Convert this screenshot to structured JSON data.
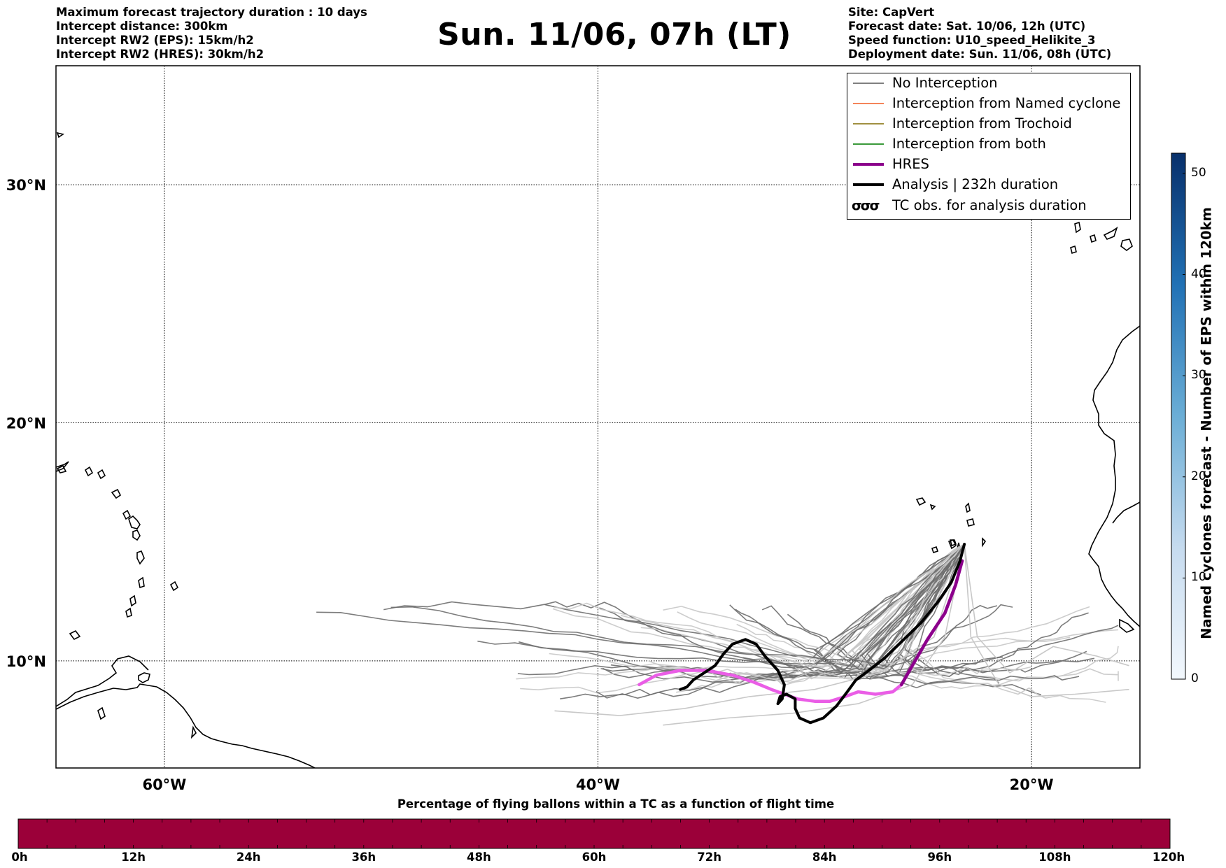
{
  "title": "Sun. 11/06, 07h (LT)",
  "info_left": [
    "Maximum forecast trajectory duration : 10 days",
    "Intercept distance: 300km",
    "Intercept RW2 (EPS):  15km/h2",
    "Intercept RW2 (HRES): 30km/h2"
  ],
  "info_right": [
    "Site: CapVert",
    "Forecast date: Sat. 10/06, 12h (UTC)",
    "Speed function: U10_speed_Helikite_3",
    "Deployment date: Sun. 11/06, 08h (UTC)"
  ],
  "map": {
    "lon_range": [
      -65,
      -15
    ],
    "lat_range": [
      5.5,
      35
    ],
    "lat_ticks": [
      {
        "value": 30,
        "label": "30°N"
      },
      {
        "value": 20,
        "label": "20°N"
      },
      {
        "value": 10,
        "label": "10°N"
      }
    ],
    "lon_ticks": [
      {
        "value": -60,
        "label": "60°W"
      },
      {
        "value": -40,
        "label": "40°W"
      },
      {
        "value": -20,
        "label": "20°W"
      }
    ],
    "grid": "dotted"
  },
  "legend": {
    "placement": "top-right",
    "items": [
      {
        "label": "No Interception",
        "color": "#808080",
        "style": "thin"
      },
      {
        "label": "Interception from Named cyclone",
        "color": "#f4845a",
        "style": "thin"
      },
      {
        "label": "Interception from Trochoid",
        "color": "#a09040",
        "style": "thin"
      },
      {
        "label": "Interception from both",
        "color": "#3a9a3a",
        "style": "thin"
      },
      {
        "label": "HRES",
        "color": "#8b008b",
        "style": "thick"
      },
      {
        "label": "Analysis | 232h duration",
        "color": "#000000",
        "style": "thick"
      },
      {
        "label": "TC obs. for analysis duration",
        "color": "#000000",
        "style": "cyclone-symbols"
      }
    ]
  },
  "trajectories": {
    "analysis": [
      [
        -23.1,
        14.9
      ],
      [
        -23.3,
        14.2
      ],
      [
        -23.7,
        13.3
      ],
      [
        -24.3,
        12.5
      ],
      [
        -25.1,
        11.6
      ],
      [
        -26.0,
        10.8
      ],
      [
        -26.8,
        10.1
      ],
      [
        -27.5,
        9.6
      ],
      [
        -28.1,
        9.2
      ],
      [
        -28.5,
        8.7
      ],
      [
        -29.0,
        8.1
      ],
      [
        -29.6,
        7.6
      ],
      [
        -30.2,
        7.4
      ],
      [
        -30.7,
        7.6
      ],
      [
        -30.9,
        8.0
      ],
      [
        -30.9,
        8.4
      ],
      [
        -31.3,
        8.6
      ],
      [
        -31.6,
        8.5
      ],
      [
        -31.7,
        8.2
      ],
      [
        -31.5,
        8.4
      ],
      [
        -31.4,
        9.0
      ],
      [
        -31.7,
        9.6
      ],
      [
        -32.3,
        10.2
      ],
      [
        -32.7,
        10.7
      ],
      [
        -33.2,
        10.9
      ],
      [
        -33.8,
        10.7
      ],
      [
        -34.2,
        10.3
      ],
      [
        -34.6,
        9.8
      ],
      [
        -35.1,
        9.5
      ],
      [
        -35.6,
        9.2
      ],
      [
        -35.9,
        8.9
      ],
      [
        -36.2,
        8.8
      ]
    ],
    "hres": [
      [
        -23.2,
        14.2
      ],
      [
        -23.5,
        13.2
      ],
      [
        -24.0,
        12.0
      ],
      [
        -24.8,
        10.9
      ],
      [
        -25.5,
        9.8
      ],
      [
        -26.0,
        9.0
      ],
      [
        -26.4,
        8.7
      ],
      [
        -27.2,
        8.6
      ],
      [
        -28.0,
        8.7
      ],
      [
        -28.6,
        8.5
      ],
      [
        -29.3,
        8.3
      ],
      [
        -30.0,
        8.3
      ],
      [
        -30.8,
        8.4
      ],
      [
        -31.4,
        8.6
      ],
      [
        -32.0,
        8.8
      ],
      [
        -32.8,
        9.1
      ],
      [
        -33.8,
        9.4
      ],
      [
        -35.0,
        9.6
      ],
      [
        -36.2,
        9.6
      ],
      [
        -37.3,
        9.4
      ],
      [
        -38.1,
        9.0
      ]
    ],
    "eps_member_count": 50
  },
  "colorbar_right": {
    "label": "Named cyclones forecast - Number of EPS within 120km",
    "min": 0,
    "max": 52,
    "ticks": [
      0,
      10,
      20,
      30,
      40,
      50
    ],
    "colors": [
      "#f3f8fd",
      "#c6dbef",
      "#6baed6",
      "#2171b5",
      "#08306b"
    ]
  },
  "colorbar_bottom": {
    "title": "Percentage of flying ballons within a TC as a function of flight time",
    "fill_color": "#9b0039",
    "percent_values": [
      0,
      0,
      0,
      0,
      0,
      0,
      0,
      0,
      0,
      0
    ],
    "tick_labels": [
      "0h",
      "12h",
      "24h",
      "36h",
      "48h",
      "60h",
      "72h",
      "84h",
      "96h",
      "108h",
      "120h"
    ]
  }
}
